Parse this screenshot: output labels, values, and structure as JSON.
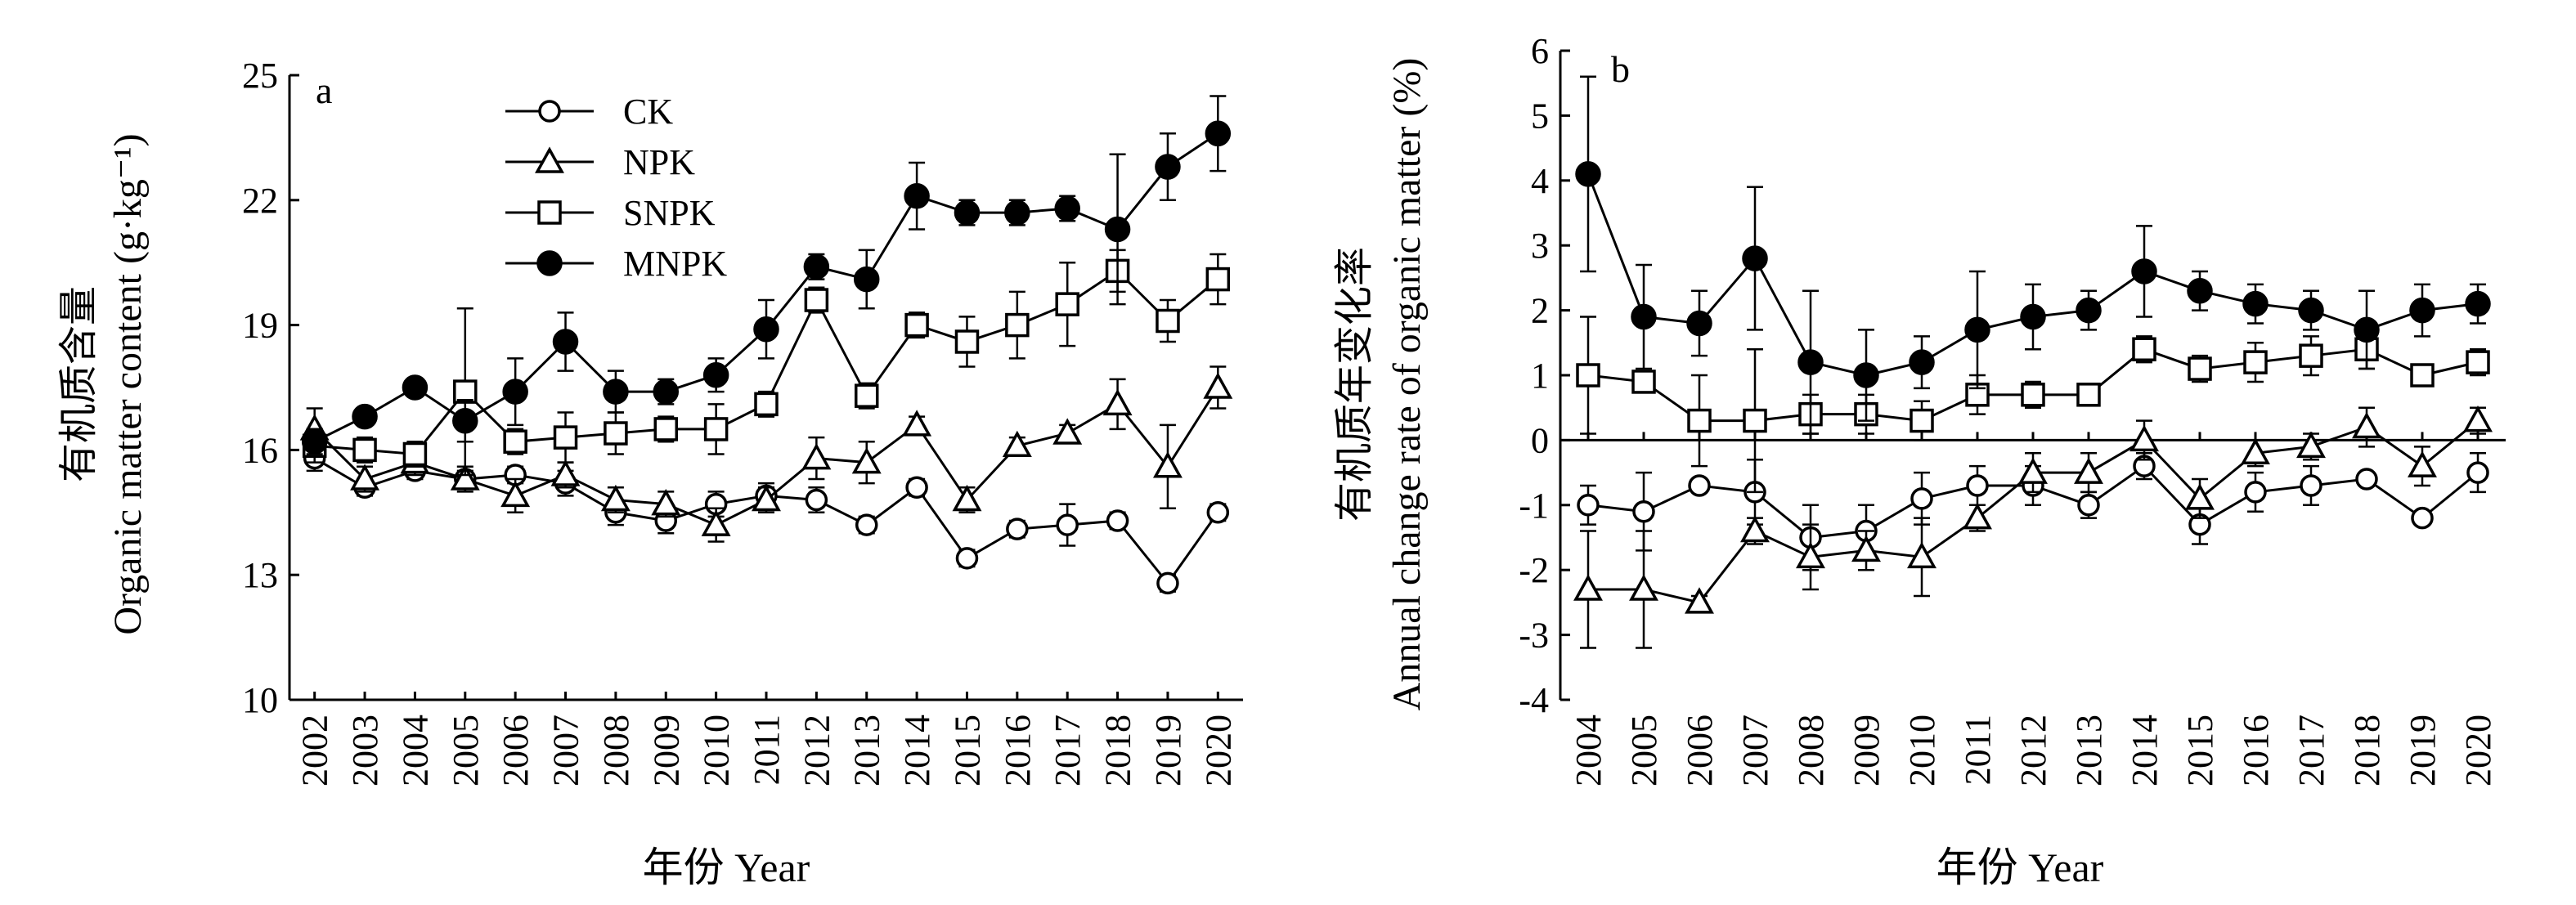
{
  "chart_data": [
    {
      "panel_label": "a",
      "type": "line",
      "ylabel_cn": "有机质含量",
      "ylabel": "Organic matter content (g·kg⁻¹)",
      "xlabel": "年份 Year",
      "ylim": [
        10,
        25
      ],
      "yticks": [
        10,
        13,
        16,
        19,
        22,
        25
      ],
      "x": [
        "2002",
        "2003",
        "2004",
        "2005",
        "2006",
        "2007",
        "2008",
        "2009",
        "2010",
        "2011",
        "2012",
        "2013",
        "2014",
        "2015",
        "2016",
        "2017",
        "2018",
        "2019",
        "2020"
      ],
      "series": [
        {
          "name": "CK",
          "marker": "circle-open",
          "values": [
            15.8,
            15.1,
            15.5,
            15.3,
            15.4,
            15.2,
            14.5,
            14.3,
            14.7,
            14.9,
            14.8,
            14.2,
            15.1,
            13.4,
            14.1,
            14.2,
            14.3,
            12.8,
            14.5
          ],
          "errors": [
            0.3,
            0.2,
            0.2,
            0.2,
            0.2,
            0.3,
            0.3,
            0.3,
            0.3,
            0.3,
            0.3,
            0.2,
            0.2,
            0.2,
            0.2,
            0.5,
            0.2,
            0.2,
            0.2
          ]
        },
        {
          "name": "NPK",
          "marker": "triangle-open",
          "values": [
            16.5,
            15.3,
            15.7,
            15.3,
            14.9,
            15.4,
            14.8,
            14.7,
            14.2,
            14.8,
            15.8,
            15.7,
            16.6,
            14.8,
            16.1,
            16.4,
            17.1,
            15.6,
            17.5
          ],
          "errors": [
            0.5,
            0.3,
            0.3,
            0.3,
            0.4,
            0.3,
            0.3,
            0.3,
            0.4,
            0.3,
            0.5,
            0.5,
            0.2,
            0.3,
            0.2,
            0.2,
            0.6,
            1.0,
            0.5
          ]
        },
        {
          "name": "SNPK",
          "marker": "square-open",
          "values": [
            16.1,
            16.0,
            15.9,
            17.4,
            16.2,
            16.3,
            16.4,
            16.5,
            16.5,
            17.1,
            19.6,
            17.3,
            19.0,
            18.6,
            19.0,
            19.5,
            20.3,
            19.1,
            20.1
          ],
          "errors": [
            0.4,
            0.3,
            0.3,
            2.0,
            0.3,
            0.6,
            0.5,
            0.3,
            0.6,
            0.3,
            0.3,
            0.3,
            0.3,
            0.6,
            0.8,
            1.0,
            0.5,
            0.5,
            0.6
          ]
        },
        {
          "name": "MNPK",
          "marker": "circle-filled",
          "values": [
            16.2,
            16.8,
            17.5,
            16.7,
            17.4,
            18.6,
            17.4,
            17.4,
            17.8,
            18.9,
            20.4,
            20.1,
            22.1,
            21.7,
            21.7,
            21.8,
            21.3,
            22.8,
            23.6
          ],
          "errors": [
            0.3,
            0.2,
            0.2,
            0.5,
            0.8,
            0.7,
            0.5,
            0.3,
            0.4,
            0.7,
            0.3,
            0.7,
            0.8,
            0.3,
            0.3,
            0.3,
            1.8,
            0.8,
            0.9
          ]
        }
      ]
    },
    {
      "panel_label": "b",
      "type": "line",
      "ylabel_cn": "有机质年变化率",
      "ylabel": "Annual change rate of organic matter (%)",
      "xlabel": "年份 Year",
      "ylim": [
        -4,
        6
      ],
      "yticks": [
        -4,
        -3,
        -2,
        -1,
        0,
        1,
        2,
        3,
        4,
        5,
        6
      ],
      "x": [
        "2004",
        "2005",
        "2006",
        "2007",
        "2008",
        "2009",
        "2010",
        "2011",
        "2012",
        "2013",
        "2014",
        "2015",
        "2016",
        "2017",
        "2018",
        "2019",
        "2020"
      ],
      "series": [
        {
          "name": "CK",
          "marker": "circle-open",
          "values": [
            -1.0,
            -1.1,
            -0.7,
            -0.8,
            -1.5,
            -1.4,
            -0.9,
            -0.7,
            -0.7,
            -1.0,
            -0.4,
            -1.3,
            -0.8,
            -0.7,
            -0.6,
            -1.2,
            -0.5
          ],
          "errors": [
            0.3,
            0.6,
            0.1,
            0.5,
            0.5,
            0.4,
            0.4,
            0.3,
            0.3,
            0.2,
            0.2,
            0.3,
            0.3,
            0.3,
            0.1,
            0.1,
            0.3
          ]
        },
        {
          "name": "NPK",
          "marker": "triangle-open",
          "values": [
            -2.3,
            -2.3,
            -2.5,
            -1.4,
            -1.8,
            -1.7,
            -1.8,
            -1.2,
            -0.5,
            -0.5,
            0.0,
            -0.9,
            -0.2,
            -0.1,
            0.2,
            -0.4,
            0.3
          ],
          "errors": [
            0.9,
            0.9,
            0.1,
            0.2,
            0.5,
            0.3,
            0.6,
            0.2,
            0.3,
            0.3,
            0.3,
            0.3,
            0.2,
            0.2,
            0.3,
            0.3,
            0.2
          ]
        },
        {
          "name": "SNPK",
          "marker": "square-open",
          "values": [
            1.0,
            0.9,
            0.3,
            0.3,
            0.4,
            0.4,
            0.3,
            0.7,
            0.7,
            0.7,
            1.4,
            1.1,
            1.2,
            1.3,
            1.4,
            1.0,
            1.2
          ],
          "errors": [
            0.9,
            0.1,
            0.7,
            1.1,
            0.3,
            0.3,
            0.3,
            0.3,
            0.2,
            0.1,
            0.2,
            0.2,
            0.3,
            0.3,
            0.3,
            0.1,
            0.2
          ]
        },
        {
          "name": "MNPK",
          "marker": "circle-filled",
          "values": [
            4.1,
            1.9,
            1.8,
            2.8,
            1.2,
            1.0,
            1.2,
            1.7,
            1.9,
            2.0,
            2.6,
            2.3,
            2.1,
            2.0,
            1.7,
            2.0,
            2.1
          ],
          "errors": [
            1.5,
            0.8,
            0.5,
            1.1,
            1.1,
            0.7,
            0.4,
            0.9,
            0.5,
            0.3,
            0.7,
            0.3,
            0.3,
            0.3,
            0.6,
            0.4,
            0.3
          ]
        }
      ]
    }
  ]
}
